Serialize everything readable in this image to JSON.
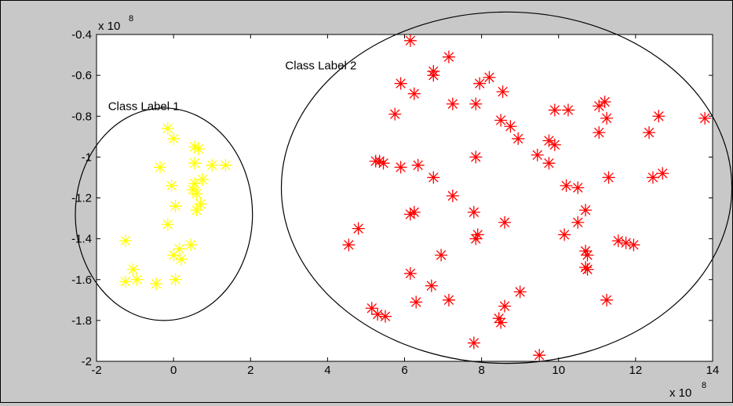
{
  "chart_data": {
    "type": "scatter",
    "title": "",
    "xlabel": "",
    "ylabel": "",
    "x_multiplier": "x 10",
    "x_multiplier_exp": "8",
    "y_multiplier": "x 10",
    "y_multiplier_exp": "8",
    "xlim": [
      -2,
      14
    ],
    "ylim": [
      -2,
      -0.4
    ],
    "xticks": [
      "-2",
      "0",
      "2",
      "4",
      "6",
      "8",
      "10",
      "12",
      "14"
    ],
    "yticks": [
      "-2",
      "-1.8",
      "-1.6",
      "-1.4",
      "-1.2",
      "-1",
      "-0.8",
      "-0.6",
      "-0.4"
    ],
    "grid": false,
    "marker": "*",
    "series": [
      {
        "color": "#ffff00",
        "points": [
          [
            -0.15,
            -0.86
          ],
          [
            0.0,
            -0.91
          ],
          [
            0.55,
            -0.95
          ],
          [
            0.65,
            -0.96
          ],
          [
            -0.35,
            -1.05
          ],
          [
            0.55,
            -1.03
          ],
          [
            1.0,
            -1.04
          ],
          [
            1.35,
            -1.04
          ],
          [
            0.75,
            -1.11
          ],
          [
            0.55,
            -1.13
          ],
          [
            -0.05,
            -1.14
          ],
          [
            0.5,
            -1.16
          ],
          [
            0.6,
            -1.18
          ],
          [
            0.7,
            -1.23
          ],
          [
            0.05,
            -1.24
          ],
          [
            0.6,
            -1.26
          ],
          [
            -0.15,
            -1.33
          ],
          [
            -1.25,
            -1.41
          ],
          [
            0.45,
            -1.43
          ],
          [
            0.15,
            -1.45
          ],
          [
            0.0,
            -1.48
          ],
          [
            0.2,
            -1.5
          ],
          [
            -1.05,
            -1.55
          ],
          [
            -1.25,
            -1.61
          ],
          [
            -0.95,
            -1.6
          ],
          [
            -0.45,
            -1.62
          ],
          [
            0.05,
            -1.6
          ]
        ]
      },
      {
        "color": "#ff0000",
        "points": [
          [
            6.15,
            -0.43
          ],
          [
            7.15,
            -0.51
          ],
          [
            6.75,
            -0.58
          ],
          [
            6.75,
            -0.6
          ],
          [
            8.2,
            -0.61
          ],
          [
            7.95,
            -0.64
          ],
          [
            5.9,
            -0.64
          ],
          [
            6.25,
            -0.69
          ],
          [
            8.55,
            -0.68
          ],
          [
            7.25,
            -0.74
          ],
          [
            7.85,
            -0.74
          ],
          [
            11.2,
            -0.73
          ],
          [
            11.05,
            -0.75
          ],
          [
            9.9,
            -0.77
          ],
          [
            10.25,
            -0.77
          ],
          [
            5.75,
            -0.79
          ],
          [
            12.6,
            -0.8
          ],
          [
            13.8,
            -0.81
          ],
          [
            11.25,
            -0.81
          ],
          [
            8.5,
            -0.82
          ],
          [
            8.75,
            -0.85
          ],
          [
            11.05,
            -0.88
          ],
          [
            12.35,
            -0.88
          ],
          [
            8.95,
            -0.91
          ],
          [
            9.75,
            -0.92
          ],
          [
            9.9,
            -0.94
          ],
          [
            9.45,
            -0.99
          ],
          [
            7.85,
            -1.0
          ],
          [
            9.75,
            -1.03
          ],
          [
            5.35,
            -1.02
          ],
          [
            5.45,
            -1.03
          ],
          [
            5.25,
            -1.02
          ],
          [
            5.9,
            -1.05
          ],
          [
            6.35,
            -1.04
          ],
          [
            6.75,
            -1.1
          ],
          [
            11.3,
            -1.1
          ],
          [
            12.45,
            -1.1
          ],
          [
            12.7,
            -1.08
          ],
          [
            10.2,
            -1.14
          ],
          [
            10.5,
            -1.15
          ],
          [
            7.25,
            -1.19
          ],
          [
            6.25,
            -1.27
          ],
          [
            6.15,
            -1.28
          ],
          [
            7.8,
            -1.27
          ],
          [
            10.7,
            -1.26
          ],
          [
            8.6,
            -1.32
          ],
          [
            10.5,
            -1.32
          ],
          [
            4.8,
            -1.35
          ],
          [
            7.9,
            -1.38
          ],
          [
            7.85,
            -1.4
          ],
          [
            10.15,
            -1.38
          ],
          [
            11.55,
            -1.41
          ],
          [
            11.75,
            -1.42
          ],
          [
            11.95,
            -1.43
          ],
          [
            4.55,
            -1.43
          ],
          [
            10.7,
            -1.46
          ],
          [
            10.75,
            -1.48
          ],
          [
            6.95,
            -1.48
          ],
          [
            10.7,
            -1.54
          ],
          [
            10.75,
            -1.55
          ],
          [
            6.15,
            -1.57
          ],
          [
            6.7,
            -1.63
          ],
          [
            9.0,
            -1.66
          ],
          [
            8.6,
            -1.73
          ],
          [
            7.15,
            -1.7
          ],
          [
            6.3,
            -1.71
          ],
          [
            11.25,
            -1.7
          ],
          [
            5.15,
            -1.74
          ],
          [
            5.3,
            -1.77
          ],
          [
            5.5,
            -1.78
          ],
          [
            8.5,
            -1.81
          ],
          [
            8.45,
            -1.79
          ],
          [
            7.8,
            -1.91
          ],
          [
            9.5,
            -1.97
          ]
        ]
      }
    ],
    "annotations": [
      {
        "text": "Class Label 1",
        "x": -1.7,
        "y": -0.77,
        "ellipse": {
          "cx": -0.25,
          "cy": -1.28,
          "rx": 2.3,
          "ry": 0.52
        }
      },
      {
        "text": "Class Label 2",
        "x": 2.9,
        "y": -0.57,
        "ellipse": {
          "cx": 8.65,
          "cy": -1.15,
          "rx": 5.85,
          "ry": 0.86
        }
      }
    ]
  }
}
